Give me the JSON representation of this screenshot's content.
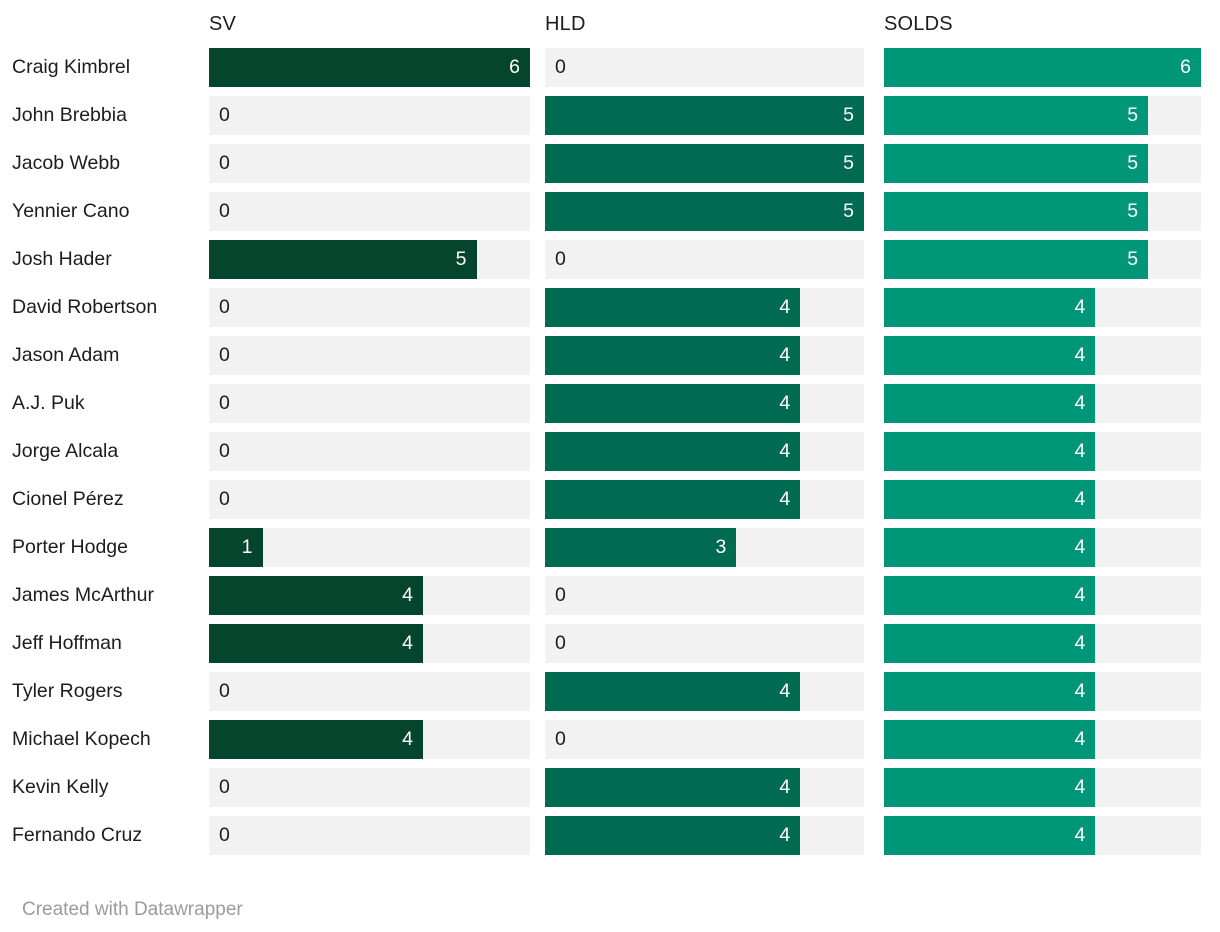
{
  "chart_data": {
    "type": "bar",
    "layout": "horizontal-split-bars",
    "grid": false,
    "track_color": "#f2f2f2",
    "columns": [
      {
        "key": "sv",
        "label": "SV",
        "max": 6,
        "bar_color": "#05452e"
      },
      {
        "key": "hld",
        "label": "HLD",
        "max": 5,
        "bar_color": "#016b52"
      },
      {
        "key": "solds",
        "label": "SOLDS",
        "max": 6,
        "bar_color": "#009678"
      }
    ],
    "players": [
      {
        "name": "Craig Kimbrel",
        "values": [
          6,
          0,
          6
        ]
      },
      {
        "name": "John Brebbia",
        "values": [
          0,
          5,
          5
        ]
      },
      {
        "name": "Jacob Webb",
        "values": [
          0,
          5,
          5
        ]
      },
      {
        "name": "Yennier Cano",
        "values": [
          0,
          5,
          5
        ]
      },
      {
        "name": "Josh Hader",
        "values": [
          5,
          0,
          5
        ]
      },
      {
        "name": "David Robertson",
        "values": [
          0,
          4,
          4
        ]
      },
      {
        "name": "Jason Adam",
        "values": [
          0,
          4,
          4
        ]
      },
      {
        "name": "A.J. Puk",
        "values": [
          0,
          4,
          4
        ]
      },
      {
        "name": "Jorge Alcala",
        "values": [
          0,
          4,
          4
        ]
      },
      {
        "name": "Cionel Pérez",
        "values": [
          0,
          4,
          4
        ]
      },
      {
        "name": "Porter Hodge",
        "values": [
          1,
          3,
          4
        ]
      },
      {
        "name": "James McArthur",
        "values": [
          4,
          0,
          4
        ]
      },
      {
        "name": "Jeff Hoffman",
        "values": [
          4,
          0,
          4
        ]
      },
      {
        "name": "Tyler Rogers",
        "values": [
          0,
          4,
          4
        ]
      },
      {
        "name": "Michael Kopech",
        "values": [
          4,
          0,
          4
        ]
      },
      {
        "name": "Kevin Kelly",
        "values": [
          0,
          4,
          4
        ]
      },
      {
        "name": "Fernando Cruz",
        "values": [
          0,
          4,
          4
        ]
      }
    ]
  },
  "colors": {
    "background": "#ffffff",
    "track": "#f2f2f2",
    "sv_bar": "#05452e",
    "hld_bar": "#016b52",
    "solds_bar": "#009678",
    "label_text": "#1d1d1d",
    "value_in_bar_text": "#ffffff",
    "value_zero_text": "#1d1d1d",
    "footer_text": "#9b9b9b"
  },
  "footer": {
    "attribution": "Created with Datawrapper"
  }
}
